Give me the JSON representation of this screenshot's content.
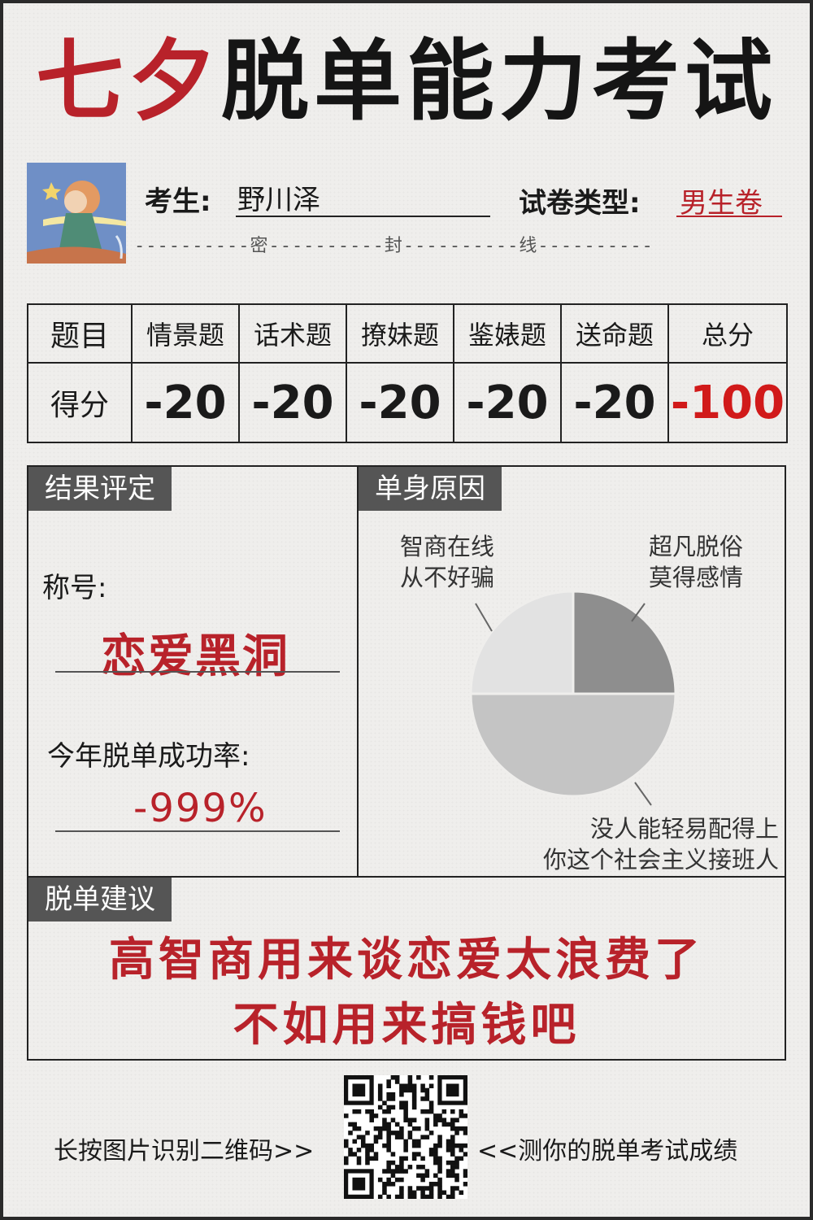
{
  "title": {
    "red": "七夕",
    "black": "脱单能力考试"
  },
  "header": {
    "examinee_label": "考生:",
    "examinee_name": "野川泽",
    "paper_type_label": "试卷类型:",
    "paper_type_value": "男生卷",
    "seal_line": "----------密----------封----------线----------"
  },
  "score_table": {
    "headers": [
      "题目",
      "情景题",
      "话术题",
      "撩妹题",
      "鉴婊题",
      "送命题",
      "总分"
    ],
    "row_label": "得分",
    "values": [
      "-20",
      "-20",
      "-20",
      "-20",
      "-20"
    ],
    "total": "-100"
  },
  "result": {
    "tag": "结果评定",
    "title_label": "称号:",
    "title_value": "恋爱黑洞",
    "rate_label": "今年脱单成功率:",
    "rate_value": "-999%"
  },
  "reasons": {
    "tag": "单身原因",
    "chart_data": {
      "type": "pie",
      "slices": [
        {
          "label": "超凡脱俗\n莫得感情",
          "value": 25,
          "color": "#8e8e8e"
        },
        {
          "label": "没人能轻易配得上\n你这个社会主义接班人",
          "value": 50,
          "color": "#c4c4c4"
        },
        {
          "label": "智商在线\n从不好骗",
          "value": 25,
          "color": "#e2e2e2"
        }
      ]
    },
    "label_top_left_1": "智商在线",
    "label_top_left_2": "从不好骗",
    "label_top_right_1": "超凡脱俗",
    "label_top_right_2": "莫得感情",
    "label_bottom_1": "没人能轻易配得上",
    "label_bottom_2": "你这个社会主义接班人"
  },
  "advice": {
    "tag": "脱单建议",
    "line1": "高智商用来谈恋爱太浪费了",
    "line2": "不如用来搞钱吧"
  },
  "footer": {
    "left": "长按图片识别二维码>>",
    "right": "<<测你的脱单考试成绩"
  }
}
